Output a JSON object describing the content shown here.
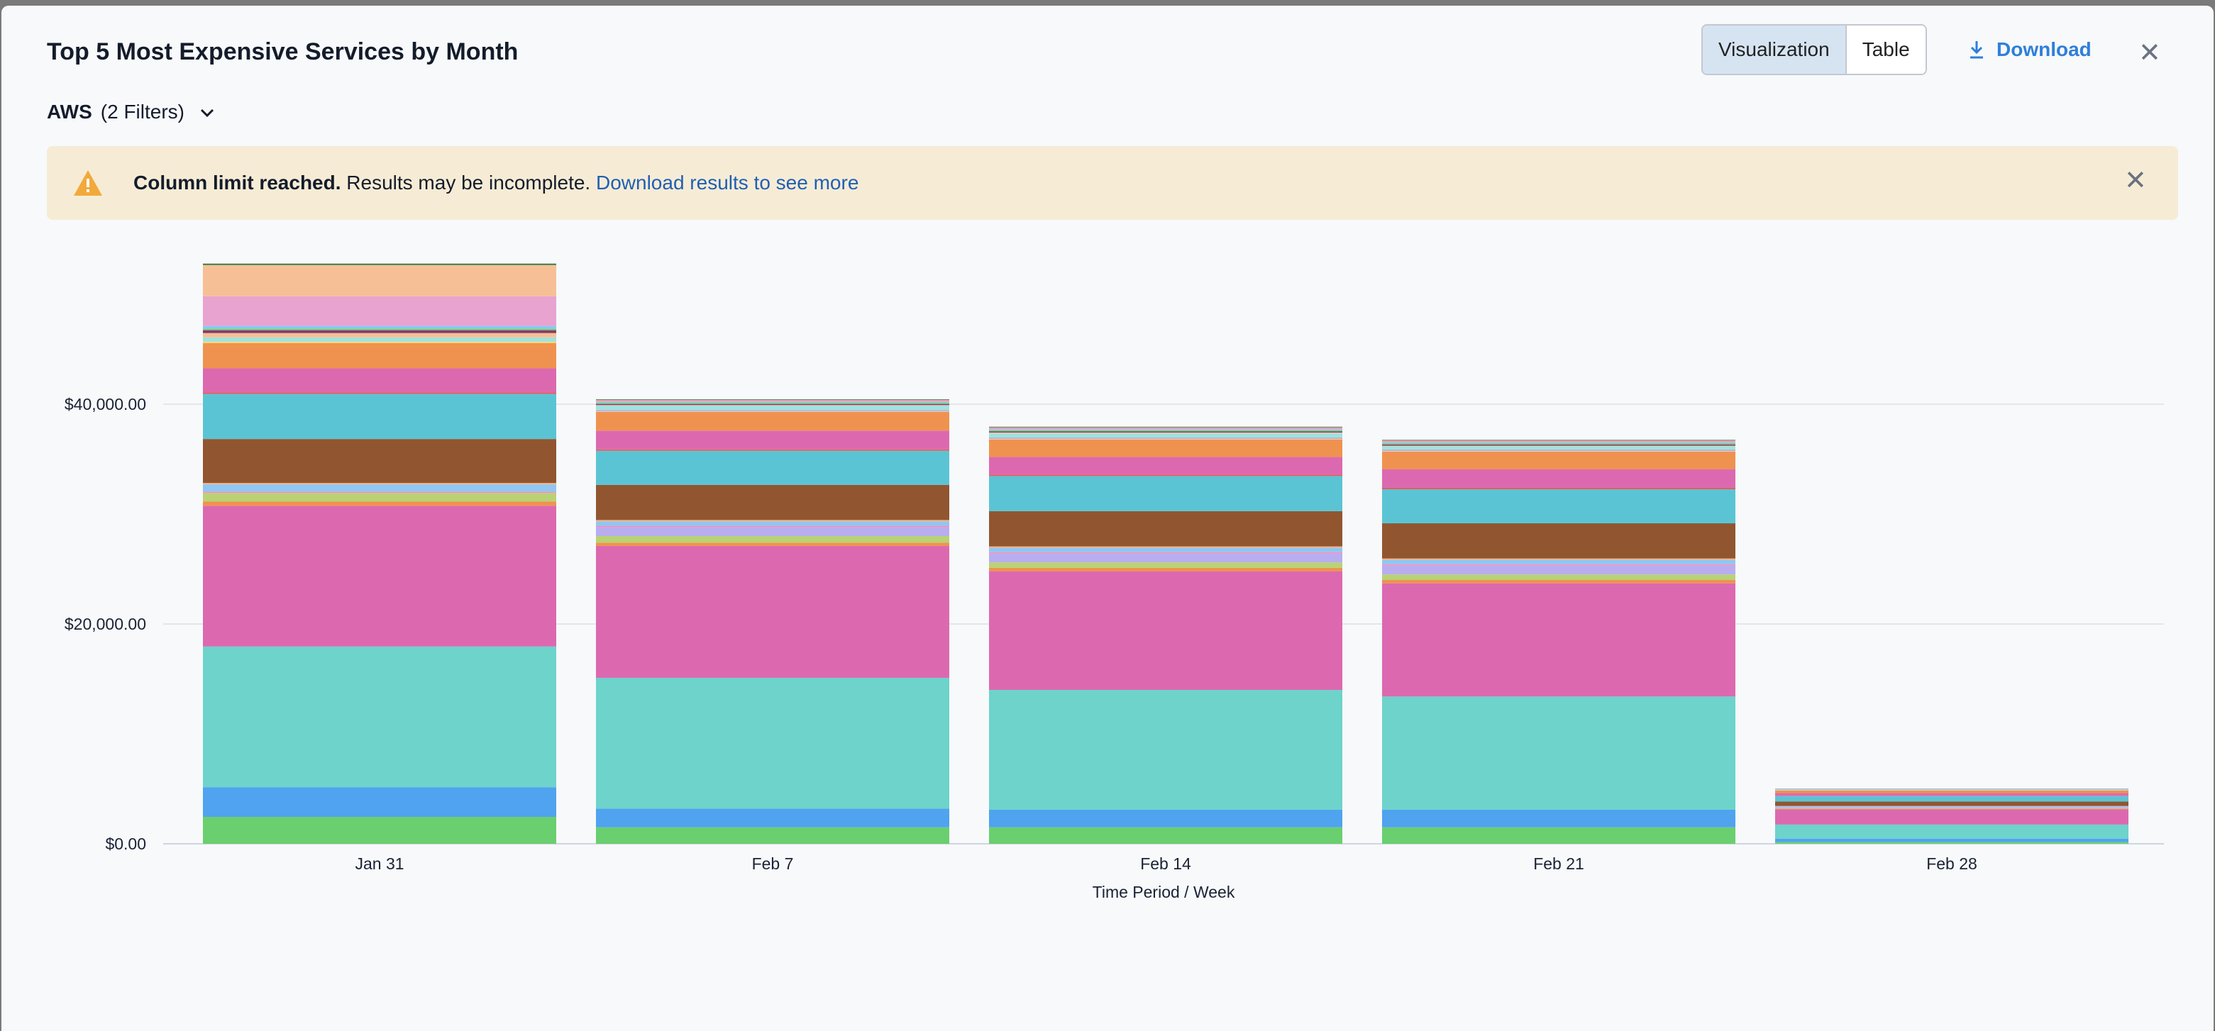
{
  "header": {
    "title": "Top 5 Most Expensive Services by Month",
    "tabs": [
      {
        "label": "Visualization",
        "active": true
      },
      {
        "label": "Table",
        "active": false
      }
    ],
    "download_label": "Download",
    "close_icon": "close-icon"
  },
  "filter": {
    "source": "AWS",
    "filters": "(2 Filters)"
  },
  "alert": {
    "bold": "Column limit reached.",
    "text": " Results may be incomplete. ",
    "link": "Download results to see more",
    "color": "#f6ecd6",
    "icon": "warning-icon"
  },
  "chart_data": {
    "type": "bar",
    "stacked": true,
    "title": "",
    "xlabel": "Time Period / Week",
    "ylabel": "",
    "categories": [
      "Jan 31",
      "Feb 7",
      "Feb 14",
      "Feb 21",
      "Feb 28"
    ],
    "yticks": [
      {
        "value": 0,
        "label": "$0.00"
      },
      {
        "value": 20000,
        "label": "$20,000.00"
      },
      {
        "value": 40000,
        "label": "$40,000.00"
      }
    ],
    "ylim": [
      0,
      58000
    ],
    "grid": true,
    "series": [
      {
        "color": "#6acf6f",
        "values": [
          2450,
          1500,
          1500,
          1500,
          150
        ]
      },
      {
        "color": "#4fa3ef",
        "values": [
          2700,
          1700,
          1600,
          1600,
          300
        ]
      },
      {
        "color": "#6dd3cb",
        "values": [
          12800,
          11900,
          10900,
          10300,
          1300
        ]
      },
      {
        "color": "#dc69b0",
        "values": [
          12800,
          12000,
          10800,
          10300,
          1400
        ]
      },
      {
        "color": "#f0924f",
        "values": [
          400,
          300,
          300,
          300,
          50
        ]
      },
      {
        "color": "#b9d274",
        "values": [
          770,
          600,
          500,
          500,
          50
        ]
      },
      {
        "color": "#b8aeef",
        "values": [
          0,
          800,
          800,
          800,
          100
        ]
      },
      {
        "color": "#ee8fc7",
        "values": [
          130,
          130,
          130,
          130,
          20
        ]
      },
      {
        "color": "#8fc7f2",
        "values": [
          650,
          400,
          400,
          400,
          50
        ]
      },
      {
        "color": "#f3b28a",
        "values": [
          130,
          130,
          130,
          130,
          20
        ]
      },
      {
        "color": "#915630",
        "values": [
          4000,
          3200,
          3200,
          3200,
          400
        ]
      },
      {
        "color": "#5bc4d4",
        "values": [
          4100,
          3100,
          3200,
          3100,
          500
        ]
      },
      {
        "color": "#e45b5b",
        "values": [
          130,
          130,
          130,
          130,
          20
        ]
      },
      {
        "color": "#dc69b0",
        "values": [
          2200,
          1700,
          1600,
          1700,
          250
        ]
      },
      {
        "color": "#f0924f",
        "values": [
          2300,
          1700,
          1600,
          1600,
          250
        ]
      },
      {
        "color": "#f6d776",
        "values": [
          130,
          50,
          50,
          50,
          10
        ]
      },
      {
        "color": "#b8aeef",
        "values": [
          0,
          130,
          130,
          130,
          0
        ]
      },
      {
        "color": "#9fe3dd",
        "values": [
          390,
          400,
          400,
          300,
          100
        ]
      },
      {
        "color": "#f7bf95",
        "values": [
          390,
          50,
          50,
          50,
          0
        ]
      },
      {
        "color": "#8a3a68",
        "values": [
          260,
          100,
          100,
          100,
          20
        ]
      },
      {
        "color": "#6acf6f",
        "values": [
          130,
          100,
          100,
          100,
          0
        ]
      },
      {
        "color": "#8fc7f2",
        "values": [
          260,
          100,
          100,
          100,
          20
        ]
      },
      {
        "color": "#e8a3d0",
        "values": [
          2700,
          50,
          50,
          50,
          0
        ]
      },
      {
        "color": "#f7bf95",
        "values": [
          2840,
          0,
          0,
          0,
          0
        ]
      },
      {
        "color": "#e89aa5",
        "values": [
          0,
          130,
          130,
          130,
          20
        ]
      },
      {
        "color": "#3a7a48",
        "values": [
          130,
          50,
          50,
          50,
          0
        ]
      }
    ]
  }
}
